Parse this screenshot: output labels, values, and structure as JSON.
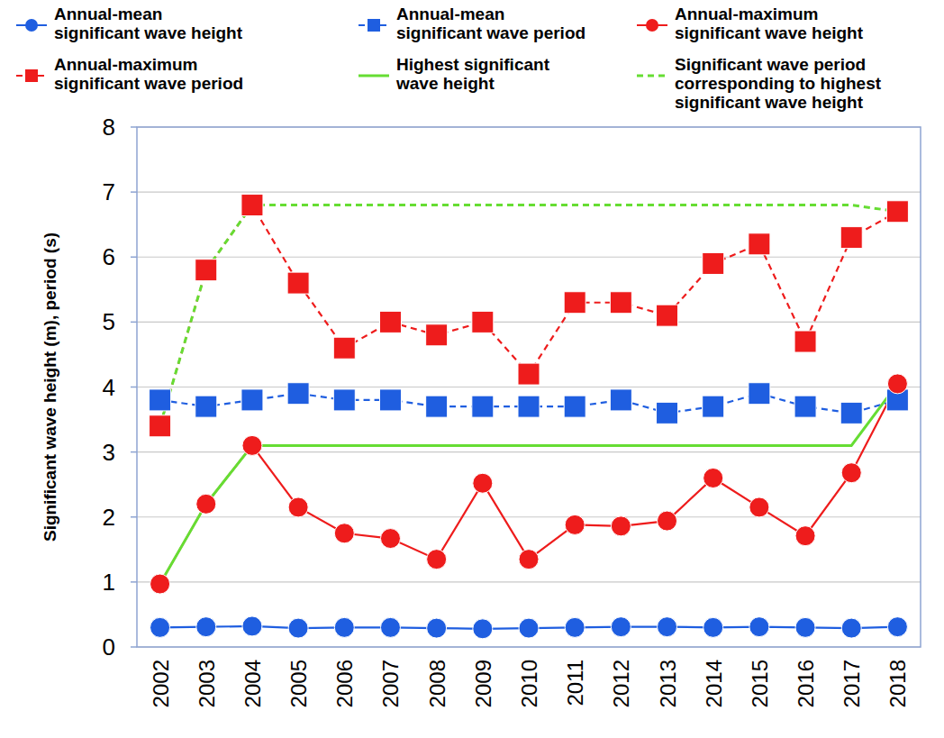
{
  "chart_data": {
    "type": "line",
    "y_label": "Significant wave height (m), period (s)",
    "categories": [
      "2002",
      "2003",
      "2004",
      "2005",
      "2006",
      "2007",
      "2008",
      "2009",
      "2010",
      "2011",
      "2012",
      "2013",
      "2014",
      "2015",
      "2016",
      "2017",
      "2018"
    ],
    "ylim": [
      0,
      8
    ],
    "yticks": [
      0,
      1,
      2,
      3,
      4,
      5,
      6,
      7,
      8
    ],
    "grid": true,
    "legend": "top",
    "series": [
      {
        "name": "Annual-mean significant wave height",
        "color": "#1f5ee0",
        "marker": "circle",
        "line_style": "solid",
        "values": [
          0.3,
          0.31,
          0.32,
          0.29,
          0.3,
          0.3,
          0.29,
          0.28,
          0.29,
          0.3,
          0.31,
          0.31,
          0.3,
          0.31,
          0.3,
          0.29,
          0.31
        ]
      },
      {
        "name": "Annual-mean significant wave period",
        "color": "#1f5ee0",
        "marker": "square",
        "line_style": "dashed",
        "values": [
          3.8,
          3.7,
          3.8,
          3.9,
          3.8,
          3.8,
          3.7,
          3.7,
          3.7,
          3.7,
          3.8,
          3.6,
          3.7,
          3.9,
          3.7,
          3.6,
          3.8
        ]
      },
      {
        "name": "Annual-maximum significant wave height",
        "color": "#ee1c1c",
        "marker": "circle",
        "line_style": "solid",
        "values": [
          0.97,
          2.2,
          3.1,
          2.15,
          1.75,
          1.67,
          1.35,
          2.52,
          1.35,
          1.88,
          1.86,
          1.94,
          2.6,
          2.15,
          1.71,
          2.68,
          4.05
        ]
      },
      {
        "name": "Annual-maximum significant wave period",
        "color": "#ee1c1c",
        "marker": "square",
        "line_style": "dashed",
        "values": [
          3.4,
          5.8,
          6.8,
          5.6,
          4.6,
          5.0,
          4.8,
          5.0,
          4.2,
          5.3,
          5.3,
          5.1,
          5.9,
          6.2,
          4.7,
          6.3,
          6.7
        ]
      },
      {
        "name": "Highest significant wave height",
        "color": "#66dd33",
        "marker": "none",
        "line_style": "solid",
        "values": [
          0.97,
          2.2,
          3.1,
          3.1,
          3.1,
          3.1,
          3.1,
          3.1,
          3.1,
          3.1,
          3.1,
          3.1,
          3.1,
          3.1,
          3.1,
          3.1,
          4.05
        ]
      },
      {
        "name": "Significant wave period corresponding to highest significant wave height",
        "color": "#66dd33",
        "marker": "none",
        "line_style": "dashed",
        "values": [
          3.4,
          5.8,
          6.8,
          6.8,
          6.8,
          6.8,
          6.8,
          6.8,
          6.8,
          6.8,
          6.8,
          6.8,
          6.8,
          6.8,
          6.8,
          6.8,
          6.7
        ]
      }
    ]
  }
}
